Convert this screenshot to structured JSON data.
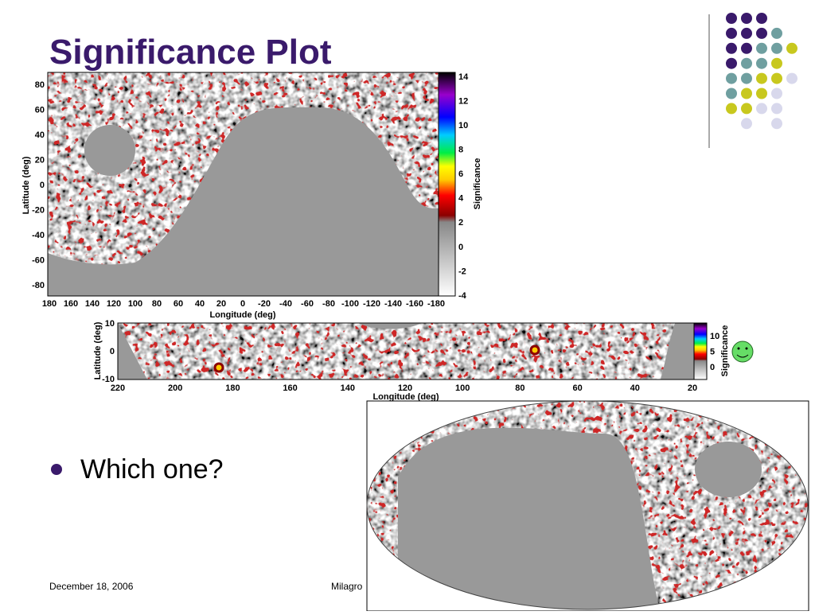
{
  "title": "Significance Plot",
  "plot1": {
    "y_label": "Latitude (deg)",
    "x_label": "Longitude (deg)",
    "colorbar_label": "Significance",
    "yticks": [
      80,
      60,
      40,
      20,
      0,
      -20,
      -40,
      -60,
      -80
    ],
    "xticks": [
      180,
      160,
      140,
      120,
      100,
      80,
      60,
      40,
      20,
      0,
      -20,
      -40,
      -60,
      -80,
      -100,
      -120,
      -140,
      -160,
      -180
    ],
    "colorbar_ticks": [
      14,
      12,
      10,
      8,
      6,
      4,
      2,
      0,
      -2,
      -4
    ]
  },
  "plot2": {
    "y_label": "Latitude (deg)",
    "x_label": "Longitude (deg)",
    "colorbar_label": "Significance",
    "yticks": [
      10,
      0,
      -10
    ],
    "xticks": [
      220,
      200,
      180,
      160,
      140,
      120,
      100,
      80,
      60,
      40,
      20
    ],
    "colorbar_ticks": [
      10,
      5,
      0
    ]
  },
  "bullet": "Which one?",
  "footer": {
    "date": "December 18, 2006",
    "center": "Milagro"
  }
}
